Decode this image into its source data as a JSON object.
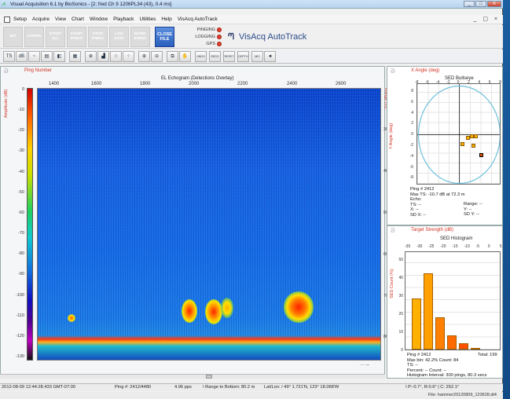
{
  "window": {
    "title": "Visual Acquisition 6.1 by BioSonics - [2: fred Ch 9 1206PL34 (43), 0.4 ms]",
    "controls": [
      "_",
      "□",
      "X"
    ],
    "mdi_controls": "_ ▢ ×"
  },
  "menu": {
    "items": [
      "Setup",
      "Acquire",
      "View",
      "Chart",
      "Window",
      "Playback",
      "Utilities",
      "Help",
      "VisAcq AutoTrack"
    ]
  },
  "bigbar": {
    "buttons": [
      "SET",
      "CONFIG",
      "START ALL",
      "START PINGS",
      "STOP PINGS",
      "LOG DATA",
      "MARK EVENT",
      "CLOSE FILE"
    ],
    "status": [
      {
        "label": "PINGING",
        "color": "#e04030"
      },
      {
        "label": "LOGGING",
        "color": "#e04030"
      },
      {
        "label": "GPS",
        "color": "#e04030"
      }
    ],
    "brand": "VisAcq AutoTrack"
  },
  "toolbar": {
    "buttons": [
      {
        "name": "ts-db-icon",
        "glyph": "TS"
      },
      {
        "name": "sv-db-icon",
        "glyph": "dB"
      },
      {
        "name": "line-chart-icon",
        "glyph": "~"
      },
      {
        "name": "color-scale-icon",
        "glyph": "▤"
      },
      {
        "name": "palette-icon",
        "glyph": "◧"
      },
      {
        "name": "grid-icon",
        "glyph": "▦"
      },
      {
        "name": "crosshair-icon",
        "glyph": "⊕"
      },
      {
        "name": "histogram-icon",
        "glyph": "▟"
      },
      {
        "name": "dots-icon",
        "glyph": "∷"
      },
      {
        "name": "dots-dense-icon",
        "glyph": "⁘"
      },
      {
        "name": "zoom-in-icon",
        "glyph": "⊕"
      },
      {
        "name": "zoom-out-icon",
        "glyph": "⊖"
      },
      {
        "name": "copy-icon",
        "glyph": "⧉"
      },
      {
        "name": "pan-hand-icon",
        "glyph": "✋"
      },
      {
        "name": "undo-icon",
        "glyph": "UNDO"
      },
      {
        "name": "redo-icon",
        "glyph": "REDO"
      },
      {
        "name": "reset-icon",
        "glyph": "RESET"
      },
      {
        "name": "depth-icon",
        "glyph": "DEPTH"
      },
      {
        "name": "mic-icon",
        "glyph": "MIC"
      },
      {
        "name": "back-arrow-icon",
        "glyph": "◄"
      }
    ]
  },
  "echogram": {
    "header": "Ping Number",
    "title": "EL Echogram (Detections Overlay)",
    "left_axis_label": "Amplitude (dB)",
    "right_axis_label": "Range (m)",
    "x_ticks": [
      "1400",
      "1600",
      "1800",
      "2000",
      "2200",
      "2400",
      "2600"
    ],
    "amplitude_ticks": [
      "0",
      "-10",
      "-20",
      "-30",
      "-40",
      "-50",
      "-60",
      "-70",
      "-80",
      "-90",
      "-100",
      "-110",
      "-120",
      "-130"
    ],
    "range_ticks": [
      "30",
      "40",
      "50",
      "60",
      "70",
      "80"
    ],
    "corner_mark": "··· ‑‑"
  },
  "bullseye": {
    "header": "X Angle (deg)",
    "title": "SED Bullseye",
    "y_label": "Y Angle (deg)",
    "x_ticks": [
      "-8",
      "-6",
      "-4",
      "-2",
      "0",
      "2",
      "4",
      "6",
      "8"
    ],
    "y_ticks": [
      "8",
      "6",
      "4",
      "2",
      "0",
      "-2",
      "-4",
      "-6",
      "-8"
    ],
    "info": [
      "Ping # 2412",
      "Max TS: -10.7 dB at 72.3 m",
      "Echo:",
      "TS: --",
      "X: --",
      "SD X: --"
    ],
    "info_right": [
      "Range: --",
      "Y: --",
      "SD Y: --"
    ]
  },
  "histogram": {
    "header": "Target Strength (dB)",
    "title": "SED Histogram",
    "y_label": "SED Count (%)",
    "x_ticks": [
      "-35",
      "-30",
      "-25",
      "-20",
      "-15",
      "-10",
      "-5",
      "0",
      "5"
    ],
    "y_ticks": [
      "50",
      "40",
      "30",
      "20",
      "10",
      "0"
    ],
    "info": [
      "Ping # 2412",
      "Max bin: 42.2%   Count: 84",
      "TS: --",
      "Percent: --         Count: --",
      "Histogram Interval: 300 pings, 80.3 secs"
    ],
    "total": "Total: 199"
  },
  "chart_data": {
    "type": "bar",
    "categories": [
      "-30",
      "-25",
      "-20",
      "-15",
      "-10",
      "-5"
    ],
    "values": [
      28.5,
      42.2,
      18.0,
      8.0,
      3.5,
      0.8
    ],
    "title": "SED Histogram",
    "xlabel": "Target Strength (dB)",
    "ylabel": "SED Count (%)",
    "ylim": [
      0,
      55
    ]
  },
  "statusbar": {
    "time": "2012-08-09 12:44:28.433 GMT-07:00",
    "ping": "Ping #: 2412/4480",
    "rate": "4.96 pps",
    "range": "\\ Range to Bottom: 80.2 m",
    "latlon": "Lat/Lon: / 49° 1.721'N, 123° 18.068'W",
    "angles": "\\ P:-0.7°, R:0.6°  |  C: 252.1°"
  },
  "filebar": {
    "file": "File: hammer20120809_123628.dt4"
  }
}
